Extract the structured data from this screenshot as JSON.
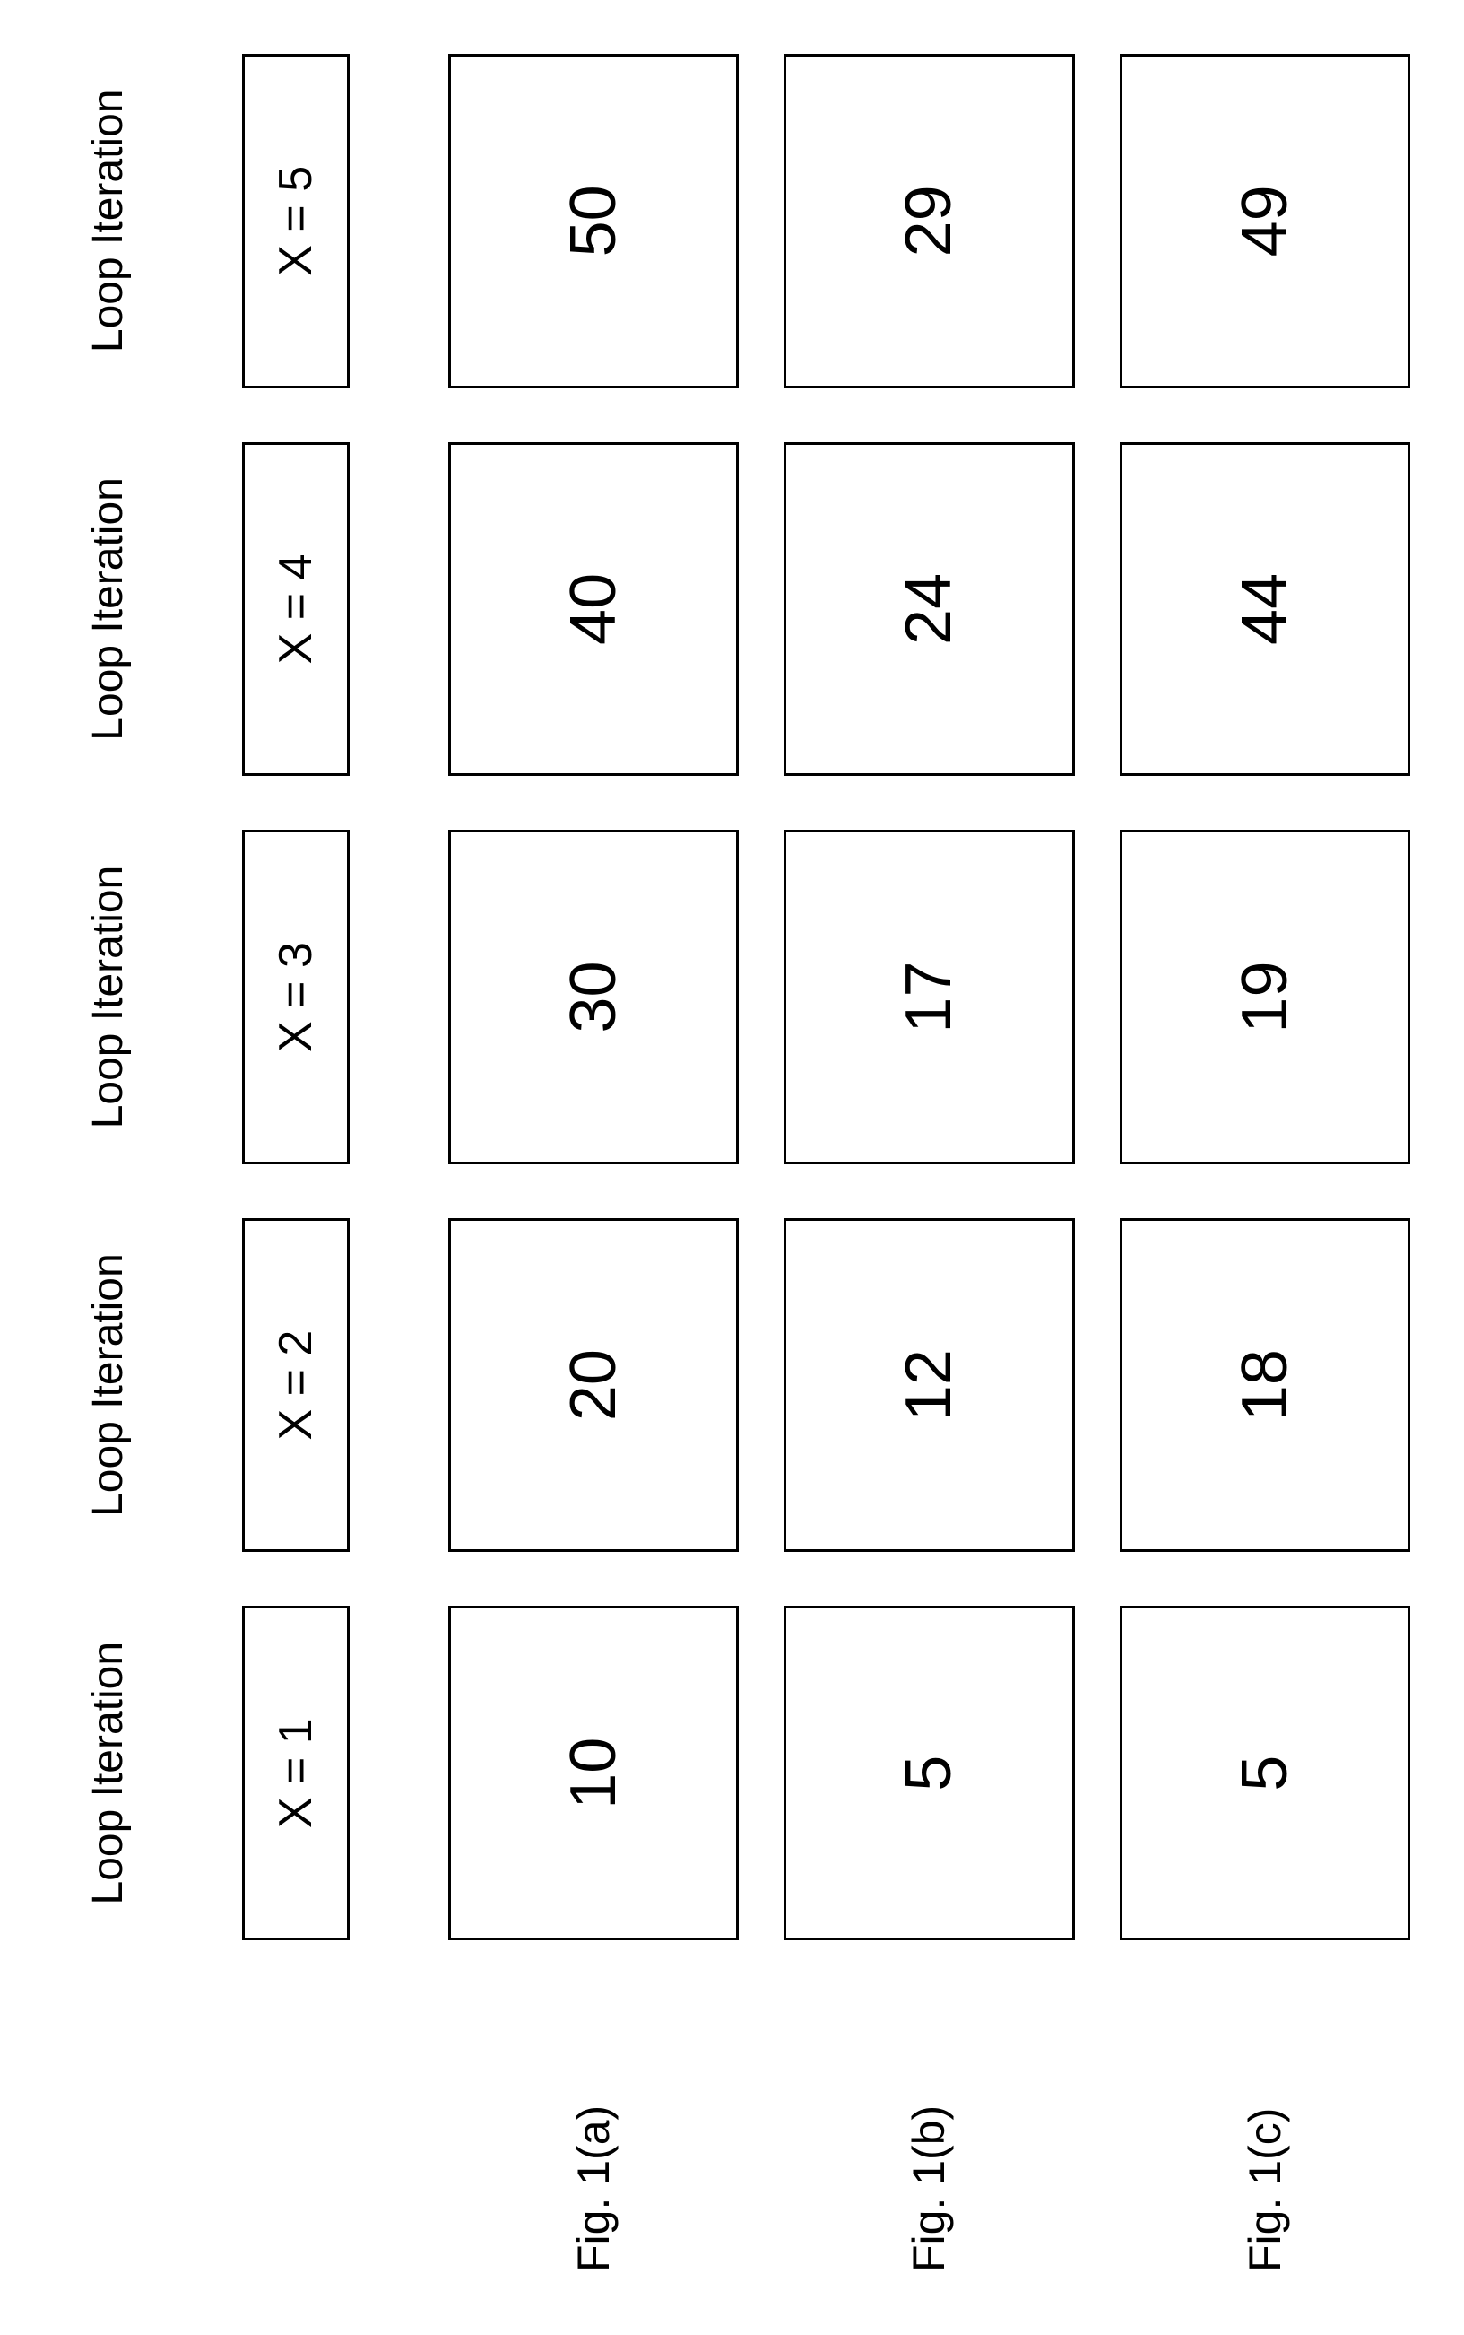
{
  "diagram": {
    "type": "table",
    "background_color": "#ffffff",
    "border_color": "#000000",
    "text_color": "#000000",
    "font_family": "Arial",
    "header_fontsize": 48,
    "xlabel_fontsize": 52,
    "figlabel_fontsize": 50,
    "value_fontsize": 72,
    "border_width": 3,
    "columns": 5,
    "rows": 3,
    "column_header_text": "Loop Iteration",
    "x_labels": [
      "X = 1",
      "X = 2",
      "X = 3",
      "X = 4",
      "X = 5"
    ],
    "row_labels": [
      "Fig. 1(a)",
      "Fig. 1(b)",
      "Fig. 1(c)"
    ],
    "data": [
      [
        10,
        20,
        30,
        40,
        50
      ],
      [
        5,
        12,
        17,
        24,
        29
      ],
      [
        5,
        18,
        19,
        44,
        49
      ]
    ]
  }
}
